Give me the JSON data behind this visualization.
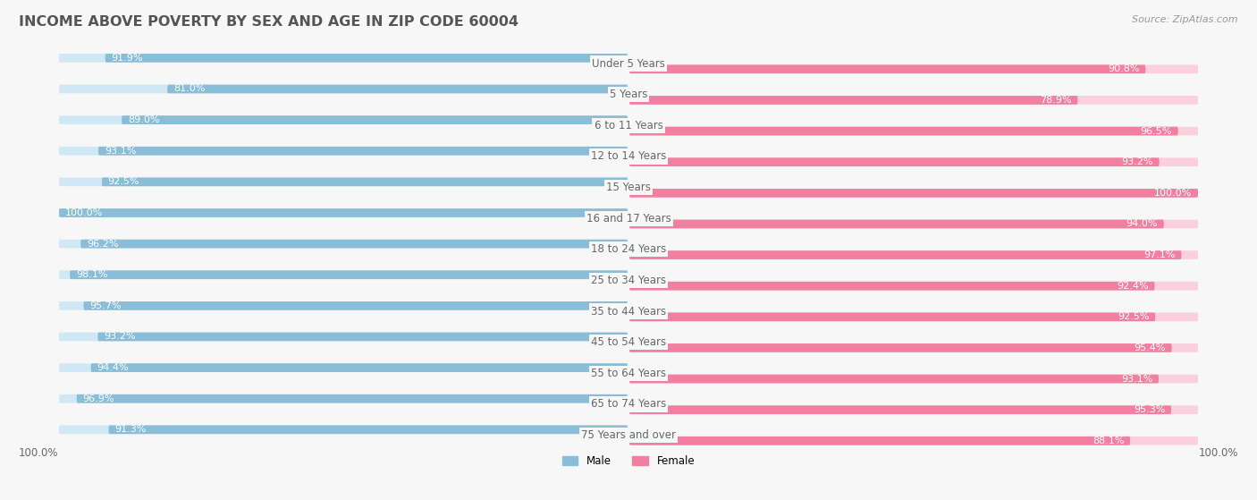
{
  "title": "INCOME ABOVE POVERTY BY SEX AND AGE IN ZIP CODE 60004",
  "source": "Source: ZipAtlas.com",
  "categories": [
    "Under 5 Years",
    "5 Years",
    "6 to 11 Years",
    "12 to 14 Years",
    "15 Years",
    "16 and 17 Years",
    "18 to 24 Years",
    "25 to 34 Years",
    "35 to 44 Years",
    "45 to 54 Years",
    "55 to 64 Years",
    "65 to 74 Years",
    "75 Years and over"
  ],
  "male_values": [
    91.9,
    81.0,
    89.0,
    93.1,
    92.5,
    100.0,
    96.2,
    98.1,
    95.7,
    93.2,
    94.4,
    96.9,
    91.3
  ],
  "female_values": [
    90.8,
    78.9,
    96.5,
    93.2,
    100.0,
    94.0,
    97.1,
    92.4,
    92.5,
    95.4,
    93.1,
    95.3,
    88.1
  ],
  "male_color": "#89BDD8",
  "female_color": "#F07FA0",
  "male_bg_color": "#D0E8F5",
  "female_bg_color": "#FAD0DC",
  "bg_color": "#F7F7F7",
  "title_color": "#555555",
  "label_color": "#666666",
  "value_color": "#FFFFFF",
  "source_color": "#999999",
  "legend_100_color": "#666666",
  "title_fontsize": 11.5,
  "label_fontsize": 8.5,
  "value_fontsize": 8,
  "source_fontsize": 8
}
